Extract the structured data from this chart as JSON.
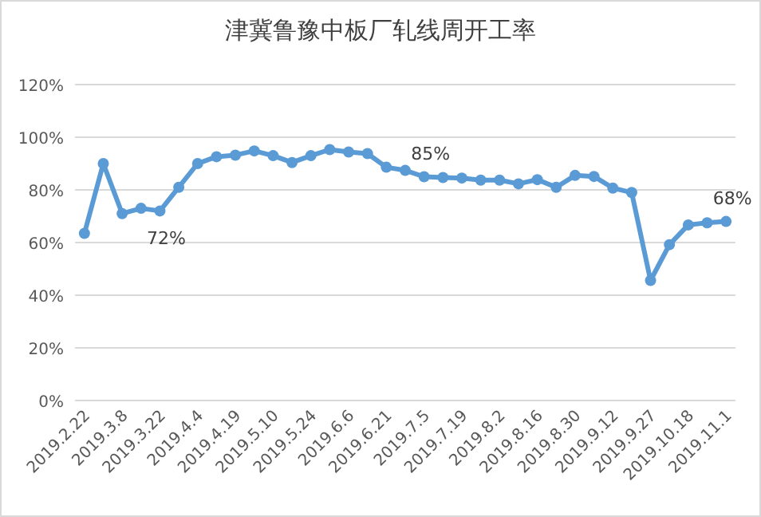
{
  "chart_data": {
    "type": "line",
    "title": "津冀鲁豫中板厂轧线周开工率",
    "categories": [
      "2019.2.22",
      null,
      "2019.3.8",
      null,
      "2019.3.22",
      null,
      "2019.4.4",
      null,
      "2019.4.19",
      null,
      "2019.5.10",
      null,
      "2019.5.24",
      null,
      "2019.6.6",
      null,
      "2019.6.21",
      null,
      "2019.7.5",
      null,
      "2019.7.19",
      null,
      "2019.8.2",
      null,
      "2019.8.16",
      null,
      "2019.8.30",
      null,
      "2019.9.12",
      null,
      "2019.9.27",
      null,
      "2019.10.18",
      null,
      "2019.11.1"
    ],
    "series": [
      {
        "color": "#5b9bd5",
        "values": [
          63.5,
          90,
          71,
          73,
          72,
          81,
          90,
          92.6,
          93.2,
          94.8,
          93,
          90.4,
          93,
          95.3,
          94.4,
          93.8,
          88.6,
          87.4,
          85,
          84.7,
          84.5,
          83.7,
          83.7,
          82.3,
          83.9,
          81,
          85.5,
          85.1,
          80.7,
          79,
          45.6,
          59.2,
          66.7,
          67.5,
          68
        ],
        "value_labels": [
          null,
          null,
          null,
          null,
          "72%",
          null,
          null,
          null,
          null,
          null,
          null,
          null,
          null,
          null,
          null,
          null,
          null,
          null,
          "85%",
          null,
          null,
          null,
          null,
          null,
          null,
          null,
          null,
          null,
          null,
          null,
          null,
          null,
          null,
          null,
          "68%"
        ]
      }
    ],
    "ylim": [
      0,
      120
    ],
    "yticks": [
      {
        "value": 0,
        "label": "0%"
      },
      {
        "value": 20,
        "label": "20%"
      },
      {
        "value": 40,
        "label": "40%"
      },
      {
        "value": 60,
        "label": "60%"
      },
      {
        "value": 80,
        "label": "80%"
      },
      {
        "value": 100,
        "label": "100%"
      },
      {
        "value": 120,
        "label": "120%"
      }
    ],
    "grid": "y",
    "marker": "circle",
    "line_style": "solid"
  }
}
